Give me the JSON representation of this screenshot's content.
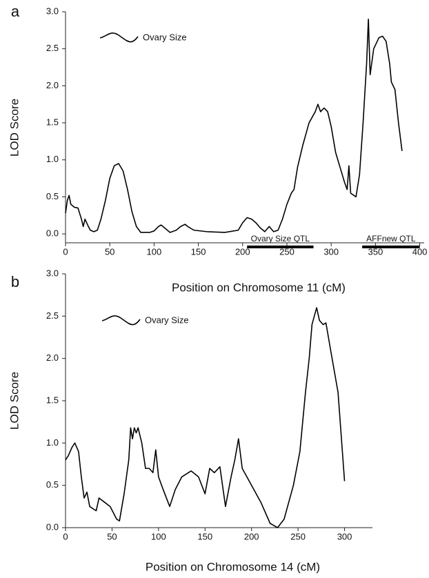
{
  "chart_data": [
    {
      "type": "line",
      "panel_label": "a",
      "x_label": "Position on Chromosome 11 (cM)",
      "y_label": "LOD Score",
      "xlim": [
        0,
        405
      ],
      "ylim": [
        -0.12,
        3
      ],
      "xticks": [
        0,
        50,
        100,
        150,
        200,
        250,
        300,
        350,
        400
      ],
      "yticks": [
        {
          "value": 0,
          "label": "0.0"
        },
        0.5,
        {
          "value": 1,
          "label": "1.0"
        },
        1.5,
        {
          "value": 2,
          "label": "2.0"
        },
        2.5,
        {
          "value": 3,
          "label": "3.0"
        }
      ],
      "legend": "upper left",
      "x": [
        0,
        2,
        4,
        6,
        10,
        14,
        18,
        20,
        22,
        25,
        28,
        32,
        36,
        40,
        45,
        50,
        55,
        60,
        65,
        70,
        75,
        80,
        85,
        95,
        100,
        105,
        108,
        112,
        118,
        125,
        130,
        135,
        138,
        145,
        160,
        180,
        195,
        200,
        205,
        210,
        215,
        220,
        225,
        230,
        235,
        240,
        245,
        250,
        255,
        258,
        262,
        268,
        275,
        282,
        285,
        288,
        292,
        296,
        300,
        305,
        310,
        315,
        318,
        320,
        322,
        328,
        332,
        336,
        340,
        342,
        344,
        348,
        354,
        358,
        362,
        366,
        368,
        372,
        376,
        380
      ],
      "series": [
        {
          "name": "Ovary Size",
          "color": "#000000",
          "values": [
            0.28,
            0.45,
            0.52,
            0.4,
            0.36,
            0.35,
            0.2,
            0.1,
            0.2,
            0.12,
            0.05,
            0.03,
            0.05,
            0.2,
            0.45,
            0.75,
            0.92,
            0.95,
            0.85,
            0.6,
            0.3,
            0.1,
            0.02,
            0.02,
            0.04,
            0.1,
            0.12,
            0.08,
            0.02,
            0.05,
            0.1,
            0.13,
            0.1,
            0.05,
            0.03,
            0.02,
            0.05,
            0.15,
            0.22,
            0.2,
            0.15,
            0.08,
            0.03,
            0.1,
            0.03,
            0.05,
            0.2,
            0.4,
            0.55,
            0.6,
            0.9,
            1.2,
            1.5,
            1.65,
            1.75,
            1.65,
            1.7,
            1.65,
            1.45,
            1.1,
            0.9,
            0.7,
            0.6,
            0.92,
            0.55,
            0.5,
            0.8,
            1.5,
            2.3,
            2.9,
            2.15,
            2.5,
            2.65,
            2.67,
            2.6,
            2.3,
            2.05,
            1.95,
            1.5,
            1.12
          ]
        }
      ],
      "qtl_bars": [
        {
          "label": "Ovary Size QTL",
          "start": 205,
          "end": 280
        },
        {
          "label": "AFFnew QTL",
          "start": 335,
          "end": 400
        }
      ]
    },
    {
      "type": "line",
      "panel_label": "b",
      "x_label": "Position on Chromosome 14 (cM)",
      "y_label": "LOD Score",
      "xlim": [
        0,
        330
      ],
      "ylim": [
        0,
        3
      ],
      "xticks": [
        0,
        50,
        100,
        150,
        200,
        250,
        300
      ],
      "yticks": [
        {
          "value": 0,
          "label": "0.0"
        },
        0.5,
        {
          "value": 1,
          "label": "1.0"
        },
        1.5,
        {
          "value": 2,
          "label": "2.0"
        },
        2.5,
        {
          "value": 3,
          "label": "3.0"
        }
      ],
      "legend": "upper left",
      "x": [
        0,
        3,
        7,
        10,
        14,
        17,
        20,
        23,
        26,
        30,
        33,
        36,
        42,
        48,
        55,
        58,
        63,
        68,
        70,
        72,
        74,
        76,
        78,
        82,
        86,
        90,
        94,
        97,
        100,
        105,
        112,
        118,
        125,
        135,
        143,
        150,
        155,
        160,
        166,
        172,
        178,
        182,
        186,
        190,
        200,
        210,
        220,
        228,
        235,
        245,
        252,
        258,
        262,
        265,
        270,
        273,
        277,
        280,
        285,
        293,
        300
      ],
      "series": [
        {
          "name": "Ovary Size",
          "color": "#000000",
          "values": [
            0.8,
            0.85,
            0.95,
            1.0,
            0.9,
            0.6,
            0.35,
            0.42,
            0.25,
            0.22,
            0.2,
            0.35,
            0.3,
            0.25,
            0.1,
            0.08,
            0.4,
            0.8,
            1.18,
            1.05,
            1.18,
            1.12,
            1.18,
            1.0,
            0.7,
            0.7,
            0.65,
            0.92,
            0.6,
            0.45,
            0.25,
            0.45,
            0.6,
            0.67,
            0.6,
            0.4,
            0.7,
            0.65,
            0.72,
            0.25,
            0.6,
            0.8,
            1.05,
            0.7,
            0.5,
            0.3,
            0.05,
            0.0,
            0.1,
            0.5,
            0.9,
            1.6,
            2.0,
            2.4,
            2.6,
            2.45,
            2.4,
            2.42,
            2.1,
            1.6,
            0.55
          ]
        }
      ]
    }
  ]
}
